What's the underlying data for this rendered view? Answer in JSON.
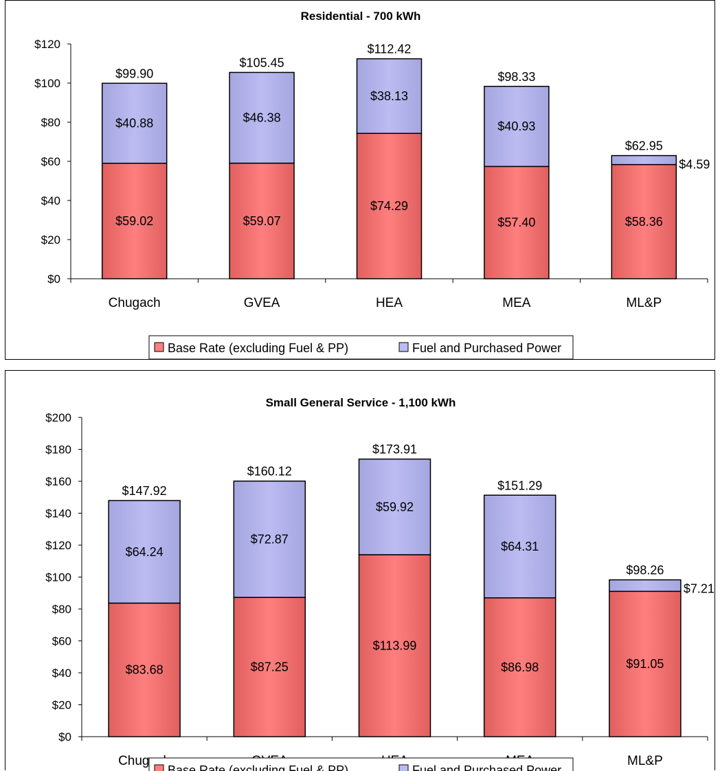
{
  "legend_labels": {
    "base": "Base Rate (excluding Fuel & PP)",
    "fuel": "Fuel and Purchased Power"
  },
  "colors": {
    "base": "#ff7f7f",
    "fuel": "#bcbcf2",
    "base_gradient_edge": "#e06060",
    "fuel_gradient_edge": "#a6a6e0"
  },
  "chart_data": [
    {
      "type": "bar",
      "stacked": true,
      "title": "Residential - 700 kWh",
      "categories": [
        "Chugach",
        "GVEA",
        "HEA",
        "MEA",
        "ML&P"
      ],
      "series": [
        {
          "name": "Base Rate (excluding Fuel & PP)",
          "values": [
            59.02,
            59.07,
            74.29,
            57.4,
            58.36
          ],
          "labels": [
            "$59.02",
            "$59.07",
            "$74.29",
            "$57.40",
            "$58.36"
          ]
        },
        {
          "name": "Fuel and Purchased Power",
          "values": [
            40.88,
            46.38,
            38.13,
            40.93,
            4.59
          ],
          "labels": [
            "$40.88",
            "$46.38",
            "$38.13",
            "$40.93",
            "$4.59"
          ]
        }
      ],
      "totals": [
        99.9,
        105.45,
        112.42,
        98.33,
        62.95
      ],
      "total_labels": [
        "$99.90",
        "$105.45",
        "$112.42",
        "$98.33",
        "$62.95"
      ],
      "ylim": [
        0,
        120
      ],
      "yticks": [
        "$0",
        "$20",
        "$40",
        "$60",
        "$80",
        "$100",
        "$120"
      ],
      "xlabel": "",
      "ylabel": "",
      "grid": false,
      "legend_position": "bottom"
    },
    {
      "type": "bar",
      "stacked": true,
      "title": "Small General Service - 1,100 kWh",
      "categories": [
        "Chugach",
        "GVEA",
        "HEA",
        "MEA",
        "ML&P"
      ],
      "series": [
        {
          "name": "Base Rate (excluding Fuel & PP)",
          "values": [
            83.68,
            87.25,
            113.99,
            86.98,
            91.05
          ],
          "labels": [
            "$83.68",
            "$87.25",
            "$113.99",
            "$86.98",
            "$91.05"
          ]
        },
        {
          "name": "Fuel and Purchased Power",
          "values": [
            64.24,
            72.87,
            59.92,
            64.31,
            7.21
          ],
          "labels": [
            "$64.24",
            "$72.87",
            "$59.92",
            "$64.31",
            "$7.21"
          ]
        }
      ],
      "totals": [
        147.92,
        160.12,
        173.91,
        151.29,
        98.26
      ],
      "total_labels": [
        "$147.92",
        "$160.12",
        "$173.91",
        "$151.29",
        "$98.26"
      ],
      "ylim": [
        0,
        200
      ],
      "yticks": [
        "$0",
        "$20",
        "$40",
        "$60",
        "$80",
        "$100",
        "$120",
        "$140",
        "$160",
        "$180",
        "$200"
      ],
      "xlabel": "",
      "ylabel": "",
      "grid": false,
      "legend_position": "bottom"
    }
  ]
}
